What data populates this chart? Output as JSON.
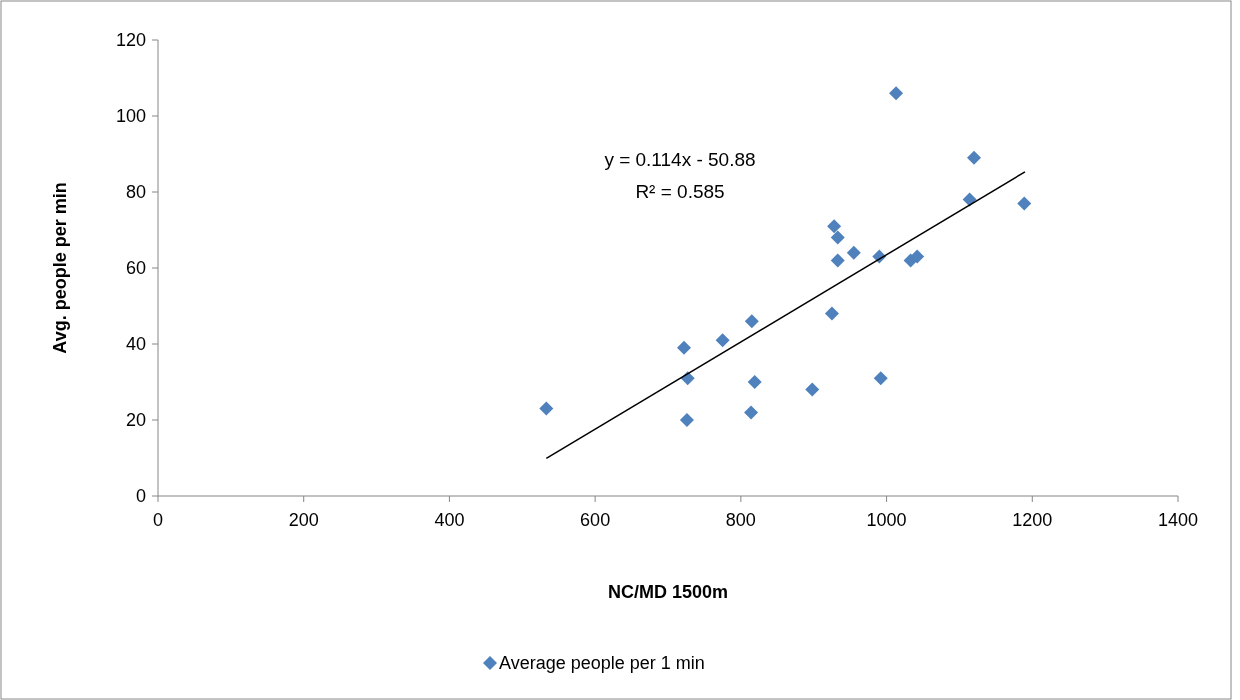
{
  "chart_data": {
    "type": "scatter",
    "xlabel": "NC/MD 1500m",
    "ylabel": "Avg. people per min",
    "xlim": [
      0,
      1400
    ],
    "xticks": [
      0,
      200,
      400,
      600,
      800,
      1000,
      1200,
      1400
    ],
    "ylim": [
      0,
      120
    ],
    "yticks": [
      0,
      20,
      40,
      60,
      80,
      100,
      120
    ],
    "grid": false,
    "legend": "bottom",
    "annotations": [
      "y = 0.114x - 50.88",
      "R² = 0.585"
    ],
    "series": [
      {
        "name": "Average people per 1 min",
        "color": "#4f81bd",
        "marker": "diamond",
        "x": [
          533,
          726,
          722,
          727,
          775,
          814,
          815,
          819,
          898,
          925,
          928,
          933,
          933,
          955,
          990,
          992,
          1013,
          1033,
          1042,
          1114,
          1120,
          1189
        ],
        "values": [
          23,
          20,
          39,
          31,
          41,
          22,
          46,
          30,
          28,
          48,
          71,
          68,
          62,
          64,
          63,
          31,
          106,
          62,
          63,
          78,
          89,
          77
        ]
      },
      {
        "type": "line",
        "color": "#000000",
        "marker": "none",
        "x": [
          533,
          1190
        ],
        "values": [
          9.9,
          85.3
        ]
      }
    ]
  }
}
